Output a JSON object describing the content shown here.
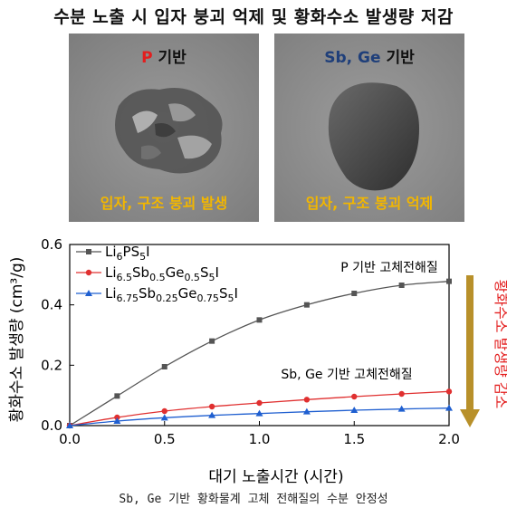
{
  "header": {
    "title": "수분 노출 시 입자 붕괴 억제 및 황화수소 발생량 저감"
  },
  "panels": [
    {
      "top_prefix": "P",
      "top_suffix": " 기반",
      "prefix_color": "#e31e1e",
      "bottom": "입자, 구조 붕괴 발생"
    },
    {
      "top_prefix": "Sb, Ge",
      "top_suffix": " 기반",
      "prefix_color": "#1f3f7a",
      "bottom": "입자, 구조 붕괴 억제"
    }
  ],
  "chart_data": {
    "type": "line",
    "xlabel": "대기 노출시간 (시간)",
    "ylabel": "황화수소 발생량 (cm³/g)",
    "xlim": [
      0.0,
      2.0
    ],
    "ylim": [
      0.0,
      0.6
    ],
    "xticks": [
      "0.0",
      "0.5",
      "1.0",
      "1.5",
      "2.0"
    ],
    "yticks": [
      "0.0",
      "0.2",
      "0.4",
      "0.6"
    ],
    "legend_position": "top-left",
    "series": [
      {
        "name": "Li6PS5I",
        "color": "#555555",
        "marker": "square",
        "x": [
          0.0,
          0.25,
          0.5,
          0.75,
          1.0,
          1.25,
          1.5,
          1.75,
          2.0
        ],
        "y": [
          0.0,
          0.098,
          0.195,
          0.28,
          0.35,
          0.4,
          0.438,
          0.465,
          0.478
        ]
      },
      {
        "name": "Li6.5Sb0.5Ge0.5S5I",
        "color": "#e03030",
        "marker": "circle",
        "x": [
          0.0,
          0.25,
          0.5,
          0.75,
          1.0,
          1.25,
          1.5,
          1.75,
          2.0
        ],
        "y": [
          0.0,
          0.027,
          0.048,
          0.063,
          0.075,
          0.086,
          0.096,
          0.105,
          0.113
        ]
      },
      {
        "name": "Li6.75Sb0.25Ge0.75S5I",
        "color": "#1f5fd0",
        "marker": "triangle",
        "x": [
          0.0,
          0.25,
          0.5,
          0.75,
          1.0,
          1.25,
          1.5,
          1.75,
          2.0
        ],
        "y": [
          0.0,
          0.015,
          0.026,
          0.034,
          0.04,
          0.046,
          0.051,
          0.055,
          0.058
        ]
      }
    ],
    "annotations": {
      "p_series": "P 기반 고체전해질",
      "sbge_series": "Sb, Ge 기반 고체전해질",
      "side_label": "황화수소 발생량 감소",
      "arrow_color": "#b8902a",
      "side_color": "#e31e1e"
    }
  },
  "caption": "Sb, Ge 기반 황화물계 고체 전해질의 수분 안정성"
}
